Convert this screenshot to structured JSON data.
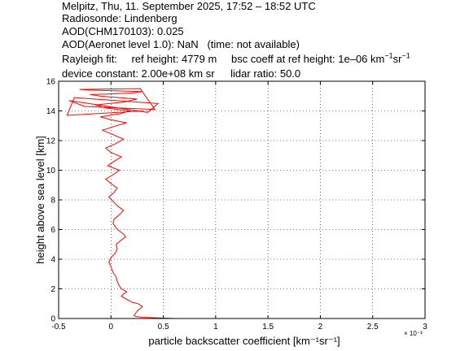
{
  "header": {
    "line1": "Melpitz, Thu, 11. September 2025, 17:52 – 18:52 UTC",
    "line2": "Radiosonde: Lindenberg",
    "line3": "AOD(CHM170103): 0.025",
    "line4_a": "AOD(Aeronet level 1.0): NaN",
    "line4_b": "(time: not available)",
    "rayleigh_label": "Rayleigh fit:",
    "ref_height": "ref height: 4779 m",
    "bsc_coeff_prefix": "bsc coeff at ref height: 1e–06 km",
    "unit_exp1": "−1",
    "unit_sr": "sr",
    "unit_exp2": "−1",
    "device_constant": "device constant: 2.00e+08 km sr",
    "lidar_ratio": "lidar ratio: 50.0"
  },
  "chart_data": {
    "type": "line",
    "xlabel": "particle backscatter coefficient [km⁻¹sr⁻¹]",
    "ylabel": "height above sea level [km]",
    "x_multiplier": "× 10⁻³",
    "xlim": [
      -0.5,
      3
    ],
    "ylim": [
      0,
      16
    ],
    "xticks": [
      -0.5,
      0,
      0.5,
      1,
      1.5,
      2,
      2.5,
      3
    ],
    "yticks": [
      0,
      2,
      4,
      6,
      8,
      10,
      12,
      14,
      16
    ],
    "grid": true,
    "series": [
      {
        "color": "#ff0000",
        "x": [
          0.63,
          0.5,
          0.3,
          0.25,
          0.22,
          0.25,
          0.3,
          0.26,
          0.2,
          0.15,
          0.1,
          0.12,
          0.15,
          0.1,
          0.08,
          0.06,
          0.05,
          0.02,
          0.0,
          -0.02,
          0.0,
          0.04,
          0.06,
          0.05,
          0.1,
          0.14,
          0.12,
          0.08,
          0.05,
          0.02,
          0.03,
          0.08,
          0.12,
          0.06,
          0.02,
          -0.02,
          0.03,
          0.06,
          0.0,
          -0.05,
          0.02,
          0.08,
          -0.03,
          0.03,
          0.1,
          0.0,
          -0.05,
          0.05,
          0.12,
          0.02,
          -0.08,
          0.05,
          0.15,
          0.0,
          -0.1,
          0.08,
          0.18,
          -0.05,
          -0.15,
          0.12,
          0.25,
          -0.1,
          -0.2,
          0.2,
          0.3,
          -0.2,
          -0.3,
          0.28,
          0.42,
          -0.25,
          -0.4,
          0.35,
          0.45,
          -0.35,
          -0.42,
          0.3
        ],
        "y": [
          0.0,
          0.03,
          0.08,
          0.12,
          0.18,
          0.5,
          0.8,
          1.0,
          1.1,
          1.3,
          1.5,
          1.65,
          1.8,
          2.0,
          2.2,
          2.5,
          2.8,
          3.1,
          3.5,
          3.8,
          4.1,
          4.4,
          4.7,
          5.0,
          5.3,
          5.5,
          5.7,
          5.9,
          6.1,
          6.4,
          6.7,
          7.0,
          7.3,
          7.6,
          7.9,
          8.2,
          8.5,
          8.8,
          9.1,
          9.4,
          9.7,
          10.0,
          10.3,
          10.6,
          10.9,
          11.2,
          11.5,
          11.8,
          12.1,
          12.4,
          12.7,
          13.0,
          13.2,
          13.4,
          13.6,
          13.8,
          14.0,
          14.2,
          14.4,
          14.6,
          14.8,
          15.0,
          15.1,
          15.2,
          15.3,
          15.4,
          15.45,
          15.5,
          14.1,
          14.3,
          14.7,
          13.9,
          14.5,
          14.9,
          13.7,
          14.0
        ]
      }
    ]
  }
}
